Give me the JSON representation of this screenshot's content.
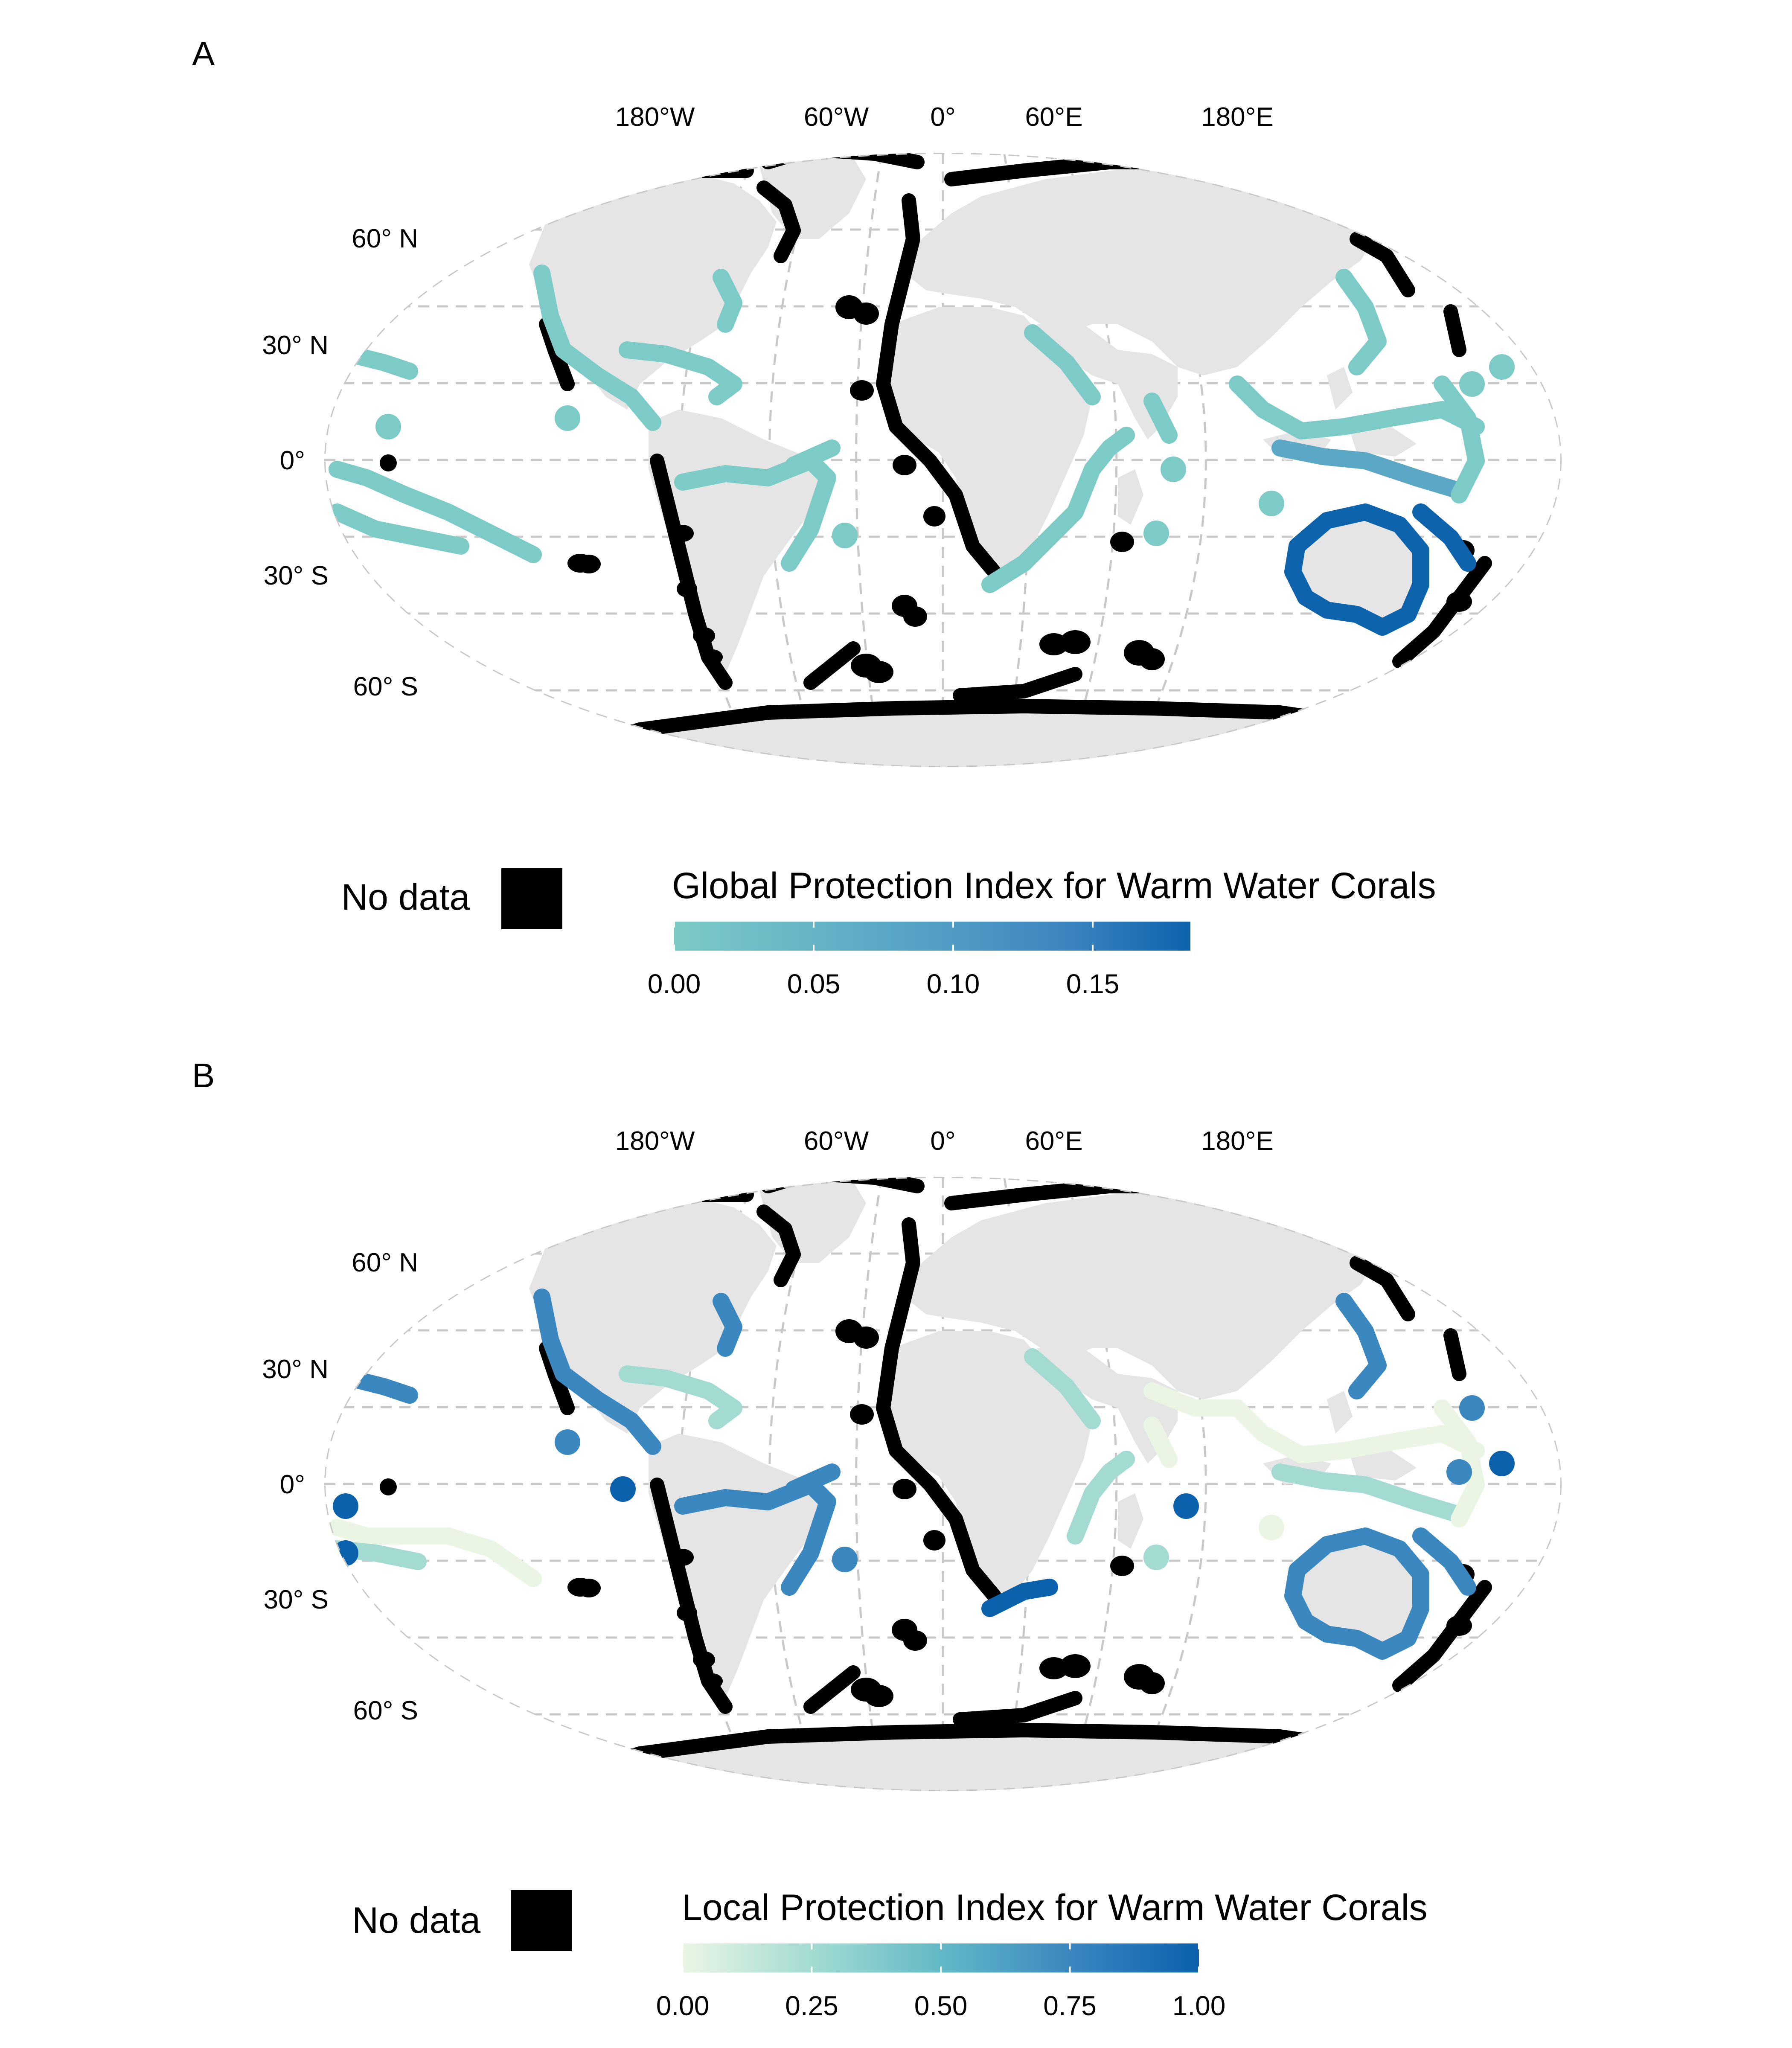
{
  "panels": [
    {
      "letter": "A",
      "legend_title": "Global Protection Index for Warm Water Corals",
      "no_data_label": "No data",
      "ticks": [
        "0.00",
        "0.05",
        "0.10",
        "0.15"
      ],
      "tick_values": [
        0.0,
        0.05,
        0.1,
        0.15
      ],
      "range": [
        0.0,
        0.185
      ],
      "colors": [
        "#7ccbc6",
        "#5aa8c6",
        "#3f86c1",
        "#0e63ad"
      ],
      "no_data_color": "#000000"
    },
    {
      "letter": "B",
      "legend_title": "Local Protection Index for Warm Water Corals",
      "no_data_label": "No data",
      "ticks": [
        "0.00",
        "0.25",
        "0.50",
        "0.75",
        "1.00"
      ],
      "tick_values": [
        0.0,
        0.25,
        0.5,
        0.75,
        1.0
      ],
      "range": [
        0.0,
        1.0
      ],
      "colors": [
        "#eaf5e4",
        "#a3dbd2",
        "#62b8c6",
        "#3b87c0",
        "#0c61ad"
      ],
      "no_data_color": "#000000"
    }
  ],
  "map": {
    "lon_labels": [
      "180°W",
      "60°W",
      "0°",
      "60°E",
      "180°E"
    ],
    "lat_labels": [
      "60° N",
      "30° N",
      "0°",
      "30° S",
      "60° S"
    ],
    "land_color": "#e5e5e5",
    "coast_color": "#000000",
    "graticule_color": "#c8c8c8"
  }
}
